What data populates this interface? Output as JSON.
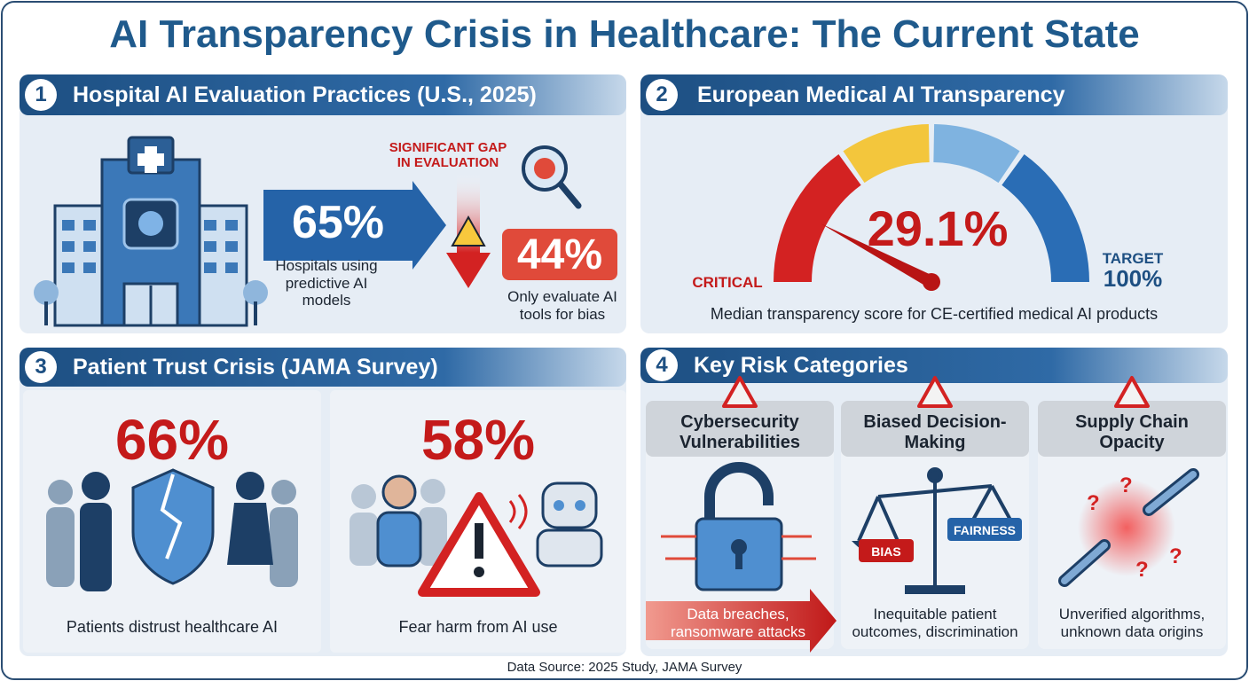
{
  "title": "AI Transparency Crisis in Healthcare: The Current State",
  "panels": [
    {
      "number": "1",
      "title": "Hospital AI Evaluation Practices (U.S., 2025)",
      "stats": [
        {
          "value": "65%",
          "caption": "Hospitals using predictive AI models"
        },
        {
          "value": "44%",
          "caption": "Only evaluate AI tools for bias"
        }
      ],
      "gap_label": "SIGNIFICANT GAP IN EVALUATION"
    },
    {
      "number": "2",
      "title": "European Medical AI Transparency",
      "value": "29.1%",
      "low_label": "CRITICAL",
      "target_label": "TARGET",
      "target_value": "100%",
      "caption": "Median transparency score for CE-certified medical AI products"
    },
    {
      "number": "3",
      "title": "Patient Trust Crisis (JAMA Survey)",
      "stats": [
        {
          "value": "66%",
          "caption": "Patients distrust healthcare AI"
        },
        {
          "value": "58%",
          "caption": "Fear harm from AI use"
        }
      ]
    },
    {
      "number": "4",
      "title": "Key Risk Categories",
      "categories": [
        {
          "name": "Cybersecurity Vulnerabilities",
          "description": "Data breaches, ransomware attacks"
        },
        {
          "name": "Biased Decision-Making",
          "description": "Inequitable patient outcomes, discrimination",
          "tags": [
            "BIAS",
            "FAIRNESS"
          ]
        },
        {
          "name": "Supply Chain Opacity",
          "description": "Unverified algorithms, unknown data origins"
        }
      ]
    }
  ],
  "source": "Data Source: 2025 Study, JAMA Survey"
}
